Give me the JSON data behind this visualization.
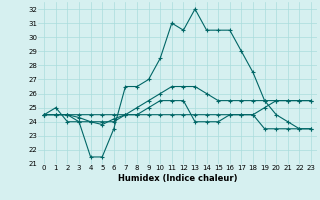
{
  "xlabel": "Humidex (Indice chaleur)",
  "bg_color": "#d6f0f0",
  "grid_color": "#aadddd",
  "line_color": "#006666",
  "xlim": [
    -0.5,
    23.5
  ],
  "ylim": [
    21,
    32.5
  ],
  "yticks": [
    21,
    22,
    23,
    24,
    25,
    26,
    27,
    28,
    29,
    30,
    31,
    32
  ],
  "xticks": [
    0,
    1,
    2,
    3,
    4,
    5,
    6,
    7,
    8,
    9,
    10,
    11,
    12,
    13,
    14,
    15,
    16,
    17,
    18,
    19,
    20,
    21,
    22,
    23
  ],
  "curves": [
    {
      "x": [
        0,
        1,
        2,
        3,
        4,
        5,
        6,
        7,
        8,
        9,
        10,
        11,
        12,
        13,
        14,
        15,
        16,
        17,
        18,
        19,
        20,
        21,
        22,
        23
      ],
      "y": [
        24.5,
        25.0,
        24.0,
        24.0,
        21.5,
        21.5,
        23.5,
        26.5,
        26.5,
        27.0,
        28.5,
        31.0,
        30.5,
        32.0,
        30.5,
        30.5,
        30.5,
        29.0,
        27.5,
        25.5,
        24.5,
        24.0,
        23.5,
        23.5
      ]
    },
    {
      "x": [
        0,
        1,
        2,
        3,
        4,
        5,
        6,
        7,
        8,
        9,
        10,
        11,
        12,
        13,
        14,
        15,
        16,
        17,
        18,
        19,
        20,
        21,
        22,
        23
      ],
      "y": [
        24.5,
        24.5,
        24.5,
        24.0,
        24.0,
        24.0,
        24.0,
        24.5,
        24.5,
        25.0,
        25.5,
        25.5,
        25.5,
        24.0,
        24.0,
        24.0,
        24.5,
        24.5,
        24.5,
        23.5,
        23.5,
        23.5,
        23.5,
        23.5
      ]
    },
    {
      "x": [
        0,
        1,
        2,
        3,
        4,
        5,
        6,
        7,
        8,
        9,
        10,
        11,
        12,
        13,
        14,
        15,
        16,
        17,
        18,
        19,
        20,
        21,
        22,
        23
      ],
      "y": [
        24.5,
        24.5,
        24.5,
        24.3,
        24.0,
        23.8,
        24.2,
        24.5,
        25.0,
        25.5,
        26.0,
        26.5,
        26.5,
        26.5,
        26.0,
        25.5,
        25.5,
        25.5,
        25.5,
        25.5,
        25.5,
        25.5,
        25.5,
        25.5
      ]
    },
    {
      "x": [
        0,
        1,
        2,
        3,
        4,
        5,
        6,
        7,
        8,
        9,
        10,
        11,
        12,
        13,
        14,
        15,
        16,
        17,
        18,
        19,
        20,
        21,
        22,
        23
      ],
      "y": [
        24.5,
        24.5,
        24.5,
        24.5,
        24.5,
        24.5,
        24.5,
        24.5,
        24.5,
        24.5,
        24.5,
        24.5,
        24.5,
        24.5,
        24.5,
        24.5,
        24.5,
        24.5,
        24.5,
        25.0,
        25.5,
        25.5,
        25.5,
        25.5
      ]
    }
  ]
}
